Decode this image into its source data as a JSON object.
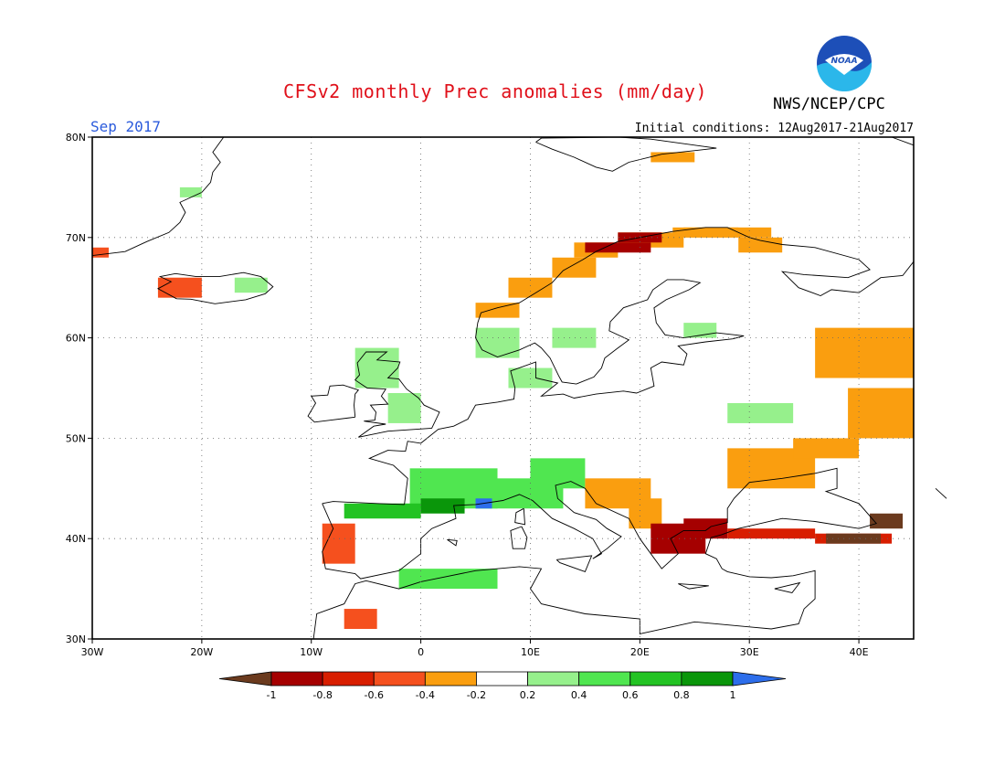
{
  "header": {
    "title": "CFSv2 monthly Prec anomalies (mm/day)",
    "agency": "NWS/NCEP/CPC",
    "logo_text": "NOAA",
    "month": "Sep 2017",
    "initial_conditions": "Initial conditions: 12Aug2017-21Aug2017"
  },
  "map": {
    "lon_range": [
      -30,
      45
    ],
    "lat_range": [
      30,
      80
    ],
    "lat_ticks": [
      {
        "value": 80,
        "label": "80N"
      },
      {
        "value": 70,
        "label": "70N"
      },
      {
        "value": 60,
        "label": "60N"
      },
      {
        "value": 50,
        "label": "50N"
      },
      {
        "value": 40,
        "label": "40N"
      },
      {
        "value": 30,
        "label": "30N"
      }
    ],
    "lon_ticks": [
      {
        "value": -30,
        "label": "30W"
      },
      {
        "value": -20,
        "label": "20W"
      },
      {
        "value": -10,
        "label": "10W"
      },
      {
        "value": 0,
        "label": "0"
      },
      {
        "value": 10,
        "label": "10E"
      },
      {
        "value": 20,
        "label": "20E"
      },
      {
        "value": 30,
        "label": "30E"
      },
      {
        "value": 40,
        "label": "40E"
      }
    ],
    "grid": "dotted"
  },
  "colorbar": {
    "labels": [
      "-1",
      "-0.8",
      "-0.6",
      "-0.4",
      "-0.2",
      "0.2",
      "0.4",
      "0.6",
      "0.8",
      "1"
    ],
    "classes": [
      {
        "range": "< -1",
        "color": "#6b3a1e"
      },
      {
        "range": "-1 to -0.8",
        "color": "#a50000"
      },
      {
        "range": "-0.8 to -0.6",
        "color": "#d81e00"
      },
      {
        "range": "-0.6 to -0.4",
        "color": "#f5501e"
      },
      {
        "range": "-0.4 to -0.2",
        "color": "#fa9e0f"
      },
      {
        "range": "-0.2 to 0.2",
        "color": "#ffffff"
      },
      {
        "range": "0.2 to 0.4",
        "color": "#96f08c"
      },
      {
        "range": "0.4 to 0.6",
        "color": "#50e650"
      },
      {
        "range": "0.6 to 0.8",
        "color": "#23c323"
      },
      {
        "range": "0.8 to 1",
        "color": "#0a960a"
      },
      {
        "range": "> 1",
        "color": "#2d6eeb"
      }
    ]
  },
  "chart_data": {
    "type": "heatmap",
    "units": "mm/day",
    "anomaly_regions": [
      {
        "name": "Iceland west",
        "color": "#f5501e",
        "cells": [
          [
            -24,
            64,
            4,
            2
          ]
        ]
      },
      {
        "name": "Iceland east",
        "color": "#96f08c",
        "cells": [
          [
            -17,
            64.5,
            3,
            1.5
          ]
        ]
      },
      {
        "name": "Greenland coast",
        "color": "#96f08c",
        "cells": [
          [
            -22,
            74,
            2,
            1
          ]
        ]
      },
      {
        "name": "Jan Mayen area",
        "color": "#f5501e",
        "cells": [
          [
            -30,
            68,
            1.5,
            1
          ]
        ]
      },
      {
        "name": "Norway coast",
        "color": "#fa9e0f",
        "cells": [
          [
            5,
            62,
            4,
            1.5
          ],
          [
            8,
            64,
            4,
            2
          ],
          [
            12,
            66,
            4,
            2
          ],
          [
            14,
            68,
            4,
            1.5
          ],
          [
            18,
            69,
            6,
            1.5
          ],
          [
            24,
            70,
            8,
            1
          ]
        ]
      },
      {
        "name": "Norway north",
        "color": "#a50000",
        "cells": [
          [
            15,
            68.5,
            6,
            1
          ],
          [
            18,
            69.5,
            4,
            1
          ]
        ]
      },
      {
        "name": "Kola / north Russia",
        "color": "#fa9e0f",
        "cells": [
          [
            29,
            68.5,
            4,
            1.5
          ],
          [
            23,
            70,
            6,
            1
          ]
        ]
      },
      {
        "name": "Svalbard",
        "color": "#fa9e0f",
        "cells": [
          [
            21,
            77.5,
            4,
            1
          ]
        ]
      },
      {
        "name": "British Isles",
        "color": "#96f08c",
        "cells": [
          [
            -6,
            55,
            4,
            4
          ],
          [
            -3,
            51.5,
            3,
            3
          ]
        ]
      },
      {
        "name": "Scandinavia south",
        "color": "#96f08c",
        "cells": [
          [
            5,
            58,
            4,
            3
          ],
          [
            12,
            59,
            4,
            2
          ],
          [
            8,
            55,
            4,
            2
          ]
        ]
      },
      {
        "name": "Finland east",
        "color": "#96f08c",
        "cells": [
          [
            24,
            60,
            3,
            1.5
          ]
        ]
      },
      {
        "name": "Russia northeast",
        "color": "#fa9e0f",
        "cells": [
          [
            36,
            56,
            9,
            5
          ],
          [
            39,
            50,
            6,
            5
          ]
        ]
      },
      {
        "name": "Belarus / Ukraine",
        "color": "#96f08c",
        "cells": [
          [
            28,
            51.5,
            6,
            2
          ]
        ]
      },
      {
        "name": "Ukraine south",
        "color": "#fa9e0f",
        "cells": [
          [
            28,
            45,
            8,
            4
          ],
          [
            34,
            48,
            6,
            2
          ]
        ]
      },
      {
        "name": "France / Alps",
        "color": "#50e650",
        "cells": [
          [
            -1,
            43,
            8,
            4
          ],
          [
            5,
            43,
            8,
            3
          ],
          [
            10,
            45,
            5,
            3
          ]
        ]
      },
      {
        "name": "Pyrenees",
        "color": "#0a960a",
        "cells": [
          [
            0,
            42.5,
            4,
            1.5
          ]
        ]
      },
      {
        "name": "Gulf of Lion",
        "color": "#2d6eeb",
        "cells": [
          [
            5,
            43,
            1.5,
            1
          ]
        ]
      },
      {
        "name": "Iberia north",
        "color": "#23c323",
        "cells": [
          [
            -7,
            42,
            7,
            1.5
          ]
        ]
      },
      {
        "name": "Portugal",
        "color": "#f5501e",
        "cells": [
          [
            -9,
            37.5,
            3,
            4
          ]
        ]
      },
      {
        "name": "North Africa coast",
        "color": "#50e650",
        "cells": [
          [
            -2,
            35,
            9,
            2
          ]
        ]
      },
      {
        "name": "Morocco",
        "color": "#f5501e",
        "cells": [
          [
            -7,
            31,
            3,
            2
          ]
        ]
      },
      {
        "name": "Balkans",
        "color": "#fa9e0f",
        "cells": [
          [
            15,
            43,
            6,
            3
          ],
          [
            19,
            41,
            3,
            3
          ]
        ]
      },
      {
        "name": "Greece / Aegean",
        "color": "#a50000",
        "cells": [
          [
            21,
            38.5,
            5,
            3
          ],
          [
            24,
            40,
            4,
            2
          ]
        ]
      },
      {
        "name": "Turkey north",
        "color": "#d81e00",
        "cells": [
          [
            28,
            40,
            8,
            1
          ],
          [
            36,
            39.5,
            7,
            1
          ]
        ]
      },
      {
        "name": "Caucasus",
        "color": "#6b3a1e",
        "cells": [
          [
            37,
            39.5,
            5,
            1
          ],
          [
            41,
            41,
            3,
            1.5
          ]
        ]
      }
    ]
  }
}
